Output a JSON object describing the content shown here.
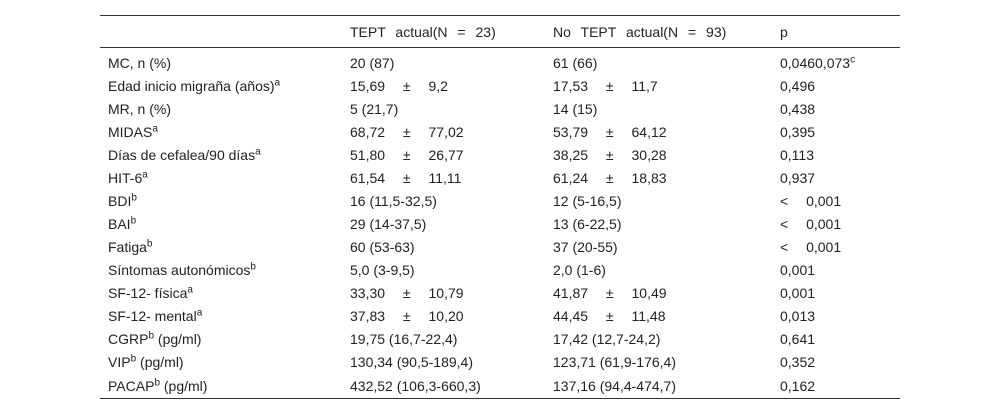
{
  "table": {
    "header": [
      "TEPT actual(N = 23)",
      "No TEPT actual(N = 93)",
      "p"
    ],
    "rows": [
      [
        {
          "text": "MC, n (%)"
        },
        "20 (87)",
        "61 (66)",
        {
          "text": "0,0460,073",
          "sup": "c"
        }
      ],
      [
        {
          "text": "Edad inicio migraña (años)",
          "sup": "a"
        },
        "15,69 ± 9,2",
        "17,53 ± 11,7",
        "0,496"
      ],
      [
        {
          "text": "MR, n (%)"
        },
        "5 (21,7)",
        "14 (15)",
        "0,438"
      ],
      [
        {
          "text": "MIDAS",
          "sup": "a"
        },
        "68,72 ± 77,02",
        "53,79 ± 64,12",
        "0,395"
      ],
      [
        {
          "text": "Días de cefalea/90 días",
          "sup": "a"
        },
        "51,80 ± 26,77",
        "38,25 ± 30,28",
        "0,113"
      ],
      [
        {
          "text": "HIT-6",
          "sup": "a"
        },
        "61,54 ± 11,11",
        "61,24 ± 18,83",
        "0,937"
      ],
      [
        {
          "text": "BDI",
          "sup": "b"
        },
        "16 (11,5-32,5)",
        "12 (5-16,5)",
        "< 0,001"
      ],
      [
        {
          "text": "BAI",
          "sup": "b"
        },
        "29 (14-37,5)",
        "13 (6-22,5)",
        "< 0,001"
      ],
      [
        {
          "text": "Fatiga",
          "sup": "b"
        },
        "60 (53-63)",
        "37 (20-55)",
        "< 0,001"
      ],
      [
        {
          "text": "Síntomas autonómicos",
          "sup": "b"
        },
        "5,0 (3-9,5)",
        "2,0 (1-6)",
        "0,001"
      ],
      [
        {
          "text": "SF-12- física",
          "sup": "a"
        },
        "33,30 ± 10,79",
        "41,87 ± 10,49",
        "0,001"
      ],
      [
        {
          "text": "SF-12- mental",
          "sup": "a"
        },
        "37,83 ± 10,20",
        "44,45 ± 11,48",
        "0,013"
      ],
      [
        {
          "text": "CGRP",
          "sup": "b",
          "tail": " (pg/ml)"
        },
        "19,75 (16,7-22,4)",
        "17,42 (12,7-24,2)",
        "0,641"
      ],
      [
        {
          "text": "VIP",
          "sup": "b",
          "tail": " (pg/ml)"
        },
        "130,34 (90,5-189,4)",
        "123,71 (61,9-176,4)",
        "0,352"
      ],
      [
        {
          "text": "PACAP",
          "sup": "b",
          "tail": " (pg/ml)"
        },
        "432,52 (106,3-660,3)",
        "137,16 (94,4-474,7)",
        "0,162"
      ]
    ]
  }
}
